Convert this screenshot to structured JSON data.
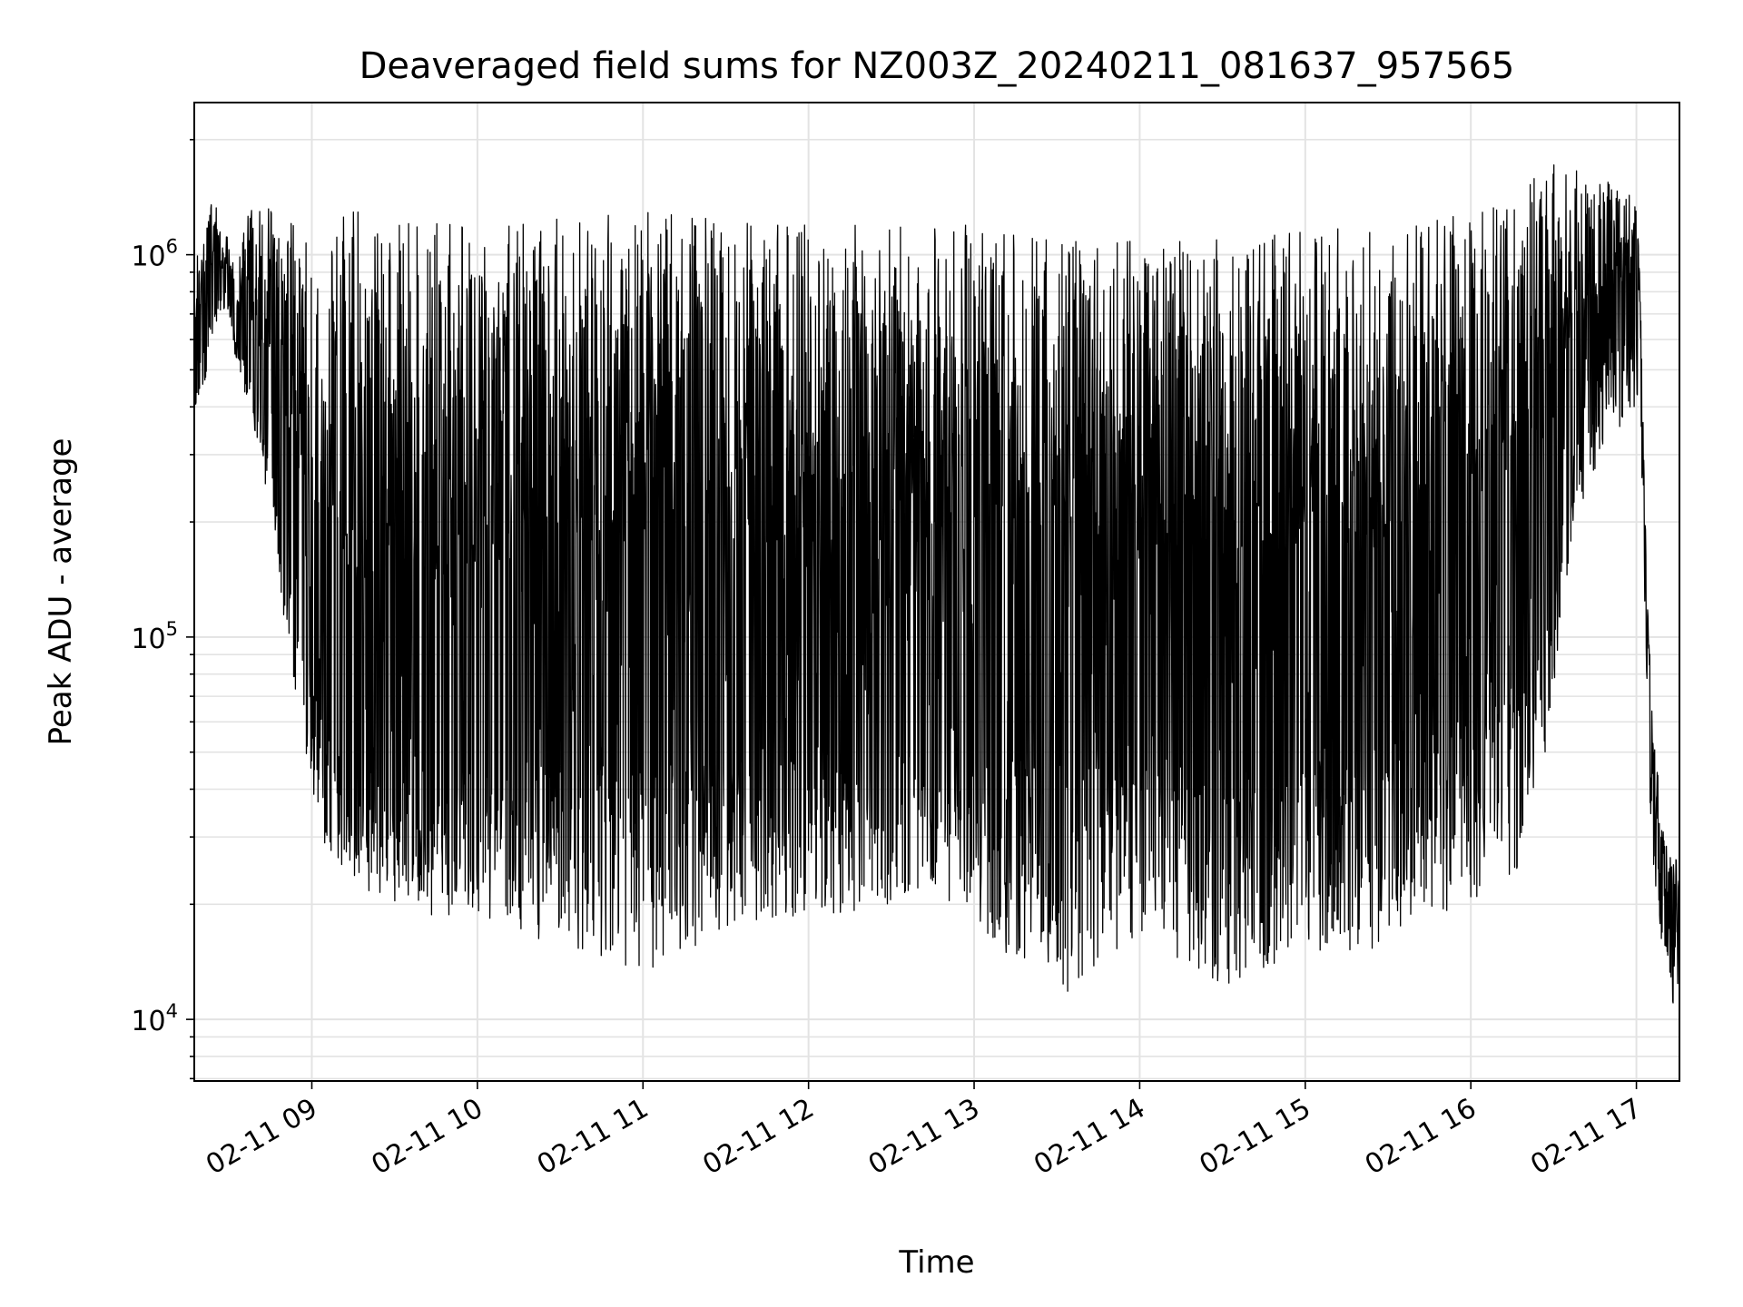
{
  "chart_data": {
    "type": "line",
    "title": "Deaveraged field sums for NZ003Z_20240211_081637_957565",
    "xlabel": "Time",
    "ylabel": "Peak ADU - average",
    "x_ticks": [
      "02-11 09",
      "02-11 10",
      "02-11 11",
      "02-11 12",
      "02-11 13",
      "02-11 14",
      "02-11 15",
      "02-11 16",
      "02-11 17"
    ],
    "y_ticks": [
      {
        "base": "10",
        "exp": "4",
        "value": 10000
      },
      {
        "base": "10",
        "exp": "5",
        "value": 100000
      },
      {
        "base": "10",
        "exp": "6",
        "value": 1000000
      }
    ],
    "y_scale": "log",
    "xlim_hours": [
      8.29,
      17.26
    ],
    "ylim": [
      6900,
      2500000
    ],
    "grid": true,
    "line_color": "#000000",
    "series": [
      {
        "x_hours": [
          8.29,
          8.35,
          8.4,
          8.45,
          8.5,
          8.55,
          8.6,
          8.65,
          8.7,
          8.75,
          8.8,
          8.85,
          8.9,
          8.95,
          9.0,
          9.05,
          9.1,
          9.15,
          9.2,
          9.3,
          9.4,
          9.5,
          9.6,
          9.8,
          10.0,
          10.5,
          11.0,
          11.5,
          12.0,
          12.5,
          13.0,
          13.5,
          14.0,
          14.5,
          15.0,
          15.5,
          16.0,
          16.3,
          16.5,
          16.6,
          16.7,
          16.8,
          16.9,
          17.0,
          17.03,
          17.06,
          17.1,
          17.15,
          17.2,
          17.26
        ],
        "y_median": [
          420000,
          520000,
          700000,
          800000,
          780000,
          600000,
          520000,
          420000,
          360000,
          300000,
          220000,
          160000,
          120000,
          95000,
          80000,
          70000,
          60000,
          55000,
          50000,
          45000,
          40000,
          38000,
          40000,
          45000,
          50000,
          55000,
          55000,
          55000,
          55000,
          55000,
          55000,
          55000,
          55000,
          55000,
          55000,
          60000,
          80000,
          100000,
          150000,
          300000,
          450000,
          550000,
          600000,
          650000,
          500000,
          120000,
          40000,
          26000,
          19000,
          18000
        ],
        "y_peak_max": [
          1000000,
          1100000,
          1500000,
          1200000,
          1100000,
          900000,
          1300000,
          1400000,
          1300000,
          1400000,
          1300000,
          1300000,
          1300000,
          1300000,
          1300000,
          1300000,
          1300000,
          1300000,
          1300000,
          1300000,
          1250000,
          1250000,
          1250000,
          1200000,
          1200000,
          1250000,
          1300000,
          1250000,
          1200000,
          1200000,
          1200000,
          1100000,
          1100000,
          1100000,
          1150000,
          1200000,
          1300000,
          1500000,
          1800000,
          1700000,
          1600000,
          1600000,
          1500000,
          1400000,
          700000,
          150000,
          60000,
          35000,
          27000,
          26000
        ],
        "y_dip_min": [
          380000,
          450000,
          620000,
          700000,
          680000,
          500000,
          420000,
          350000,
          280000,
          200000,
          130000,
          90000,
          70000,
          50000,
          35000,
          30000,
          27000,
          25000,
          24000,
          22000,
          21000,
          20000,
          20000,
          18000,
          17000,
          16000,
          13000,
          17000,
          18000,
          20000,
          18000,
          11000,
          17000,
          12000,
          15000,
          15000,
          20000,
          25000,
          60000,
          150000,
          250000,
          300000,
          350000,
          400000,
          300000,
          60000,
          25000,
          16000,
          12000,
          9000
        ]
      }
    ]
  }
}
